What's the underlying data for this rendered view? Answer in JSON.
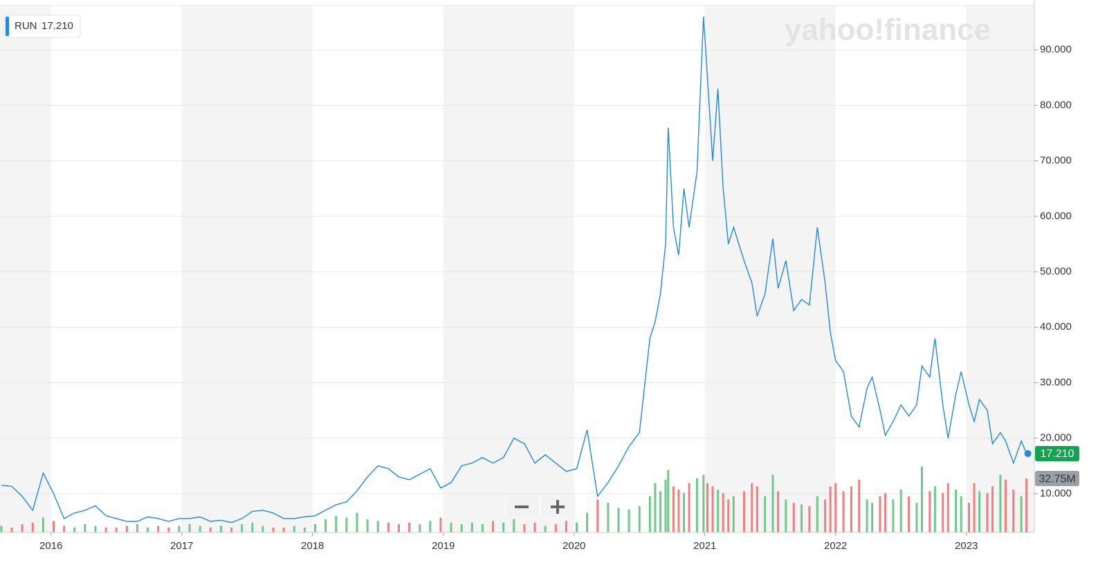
{
  "chart_data": {
    "type": "line",
    "watermark": "yahoo!finance",
    "xlim": [
      2015.61,
      2023.52
    ],
    "xticks": [
      2016,
      2017,
      2018,
      2019,
      2020,
      2021,
      2022,
      2023
    ],
    "ylim": [
      3,
      98
    ],
    "yticks": [
      {
        "value": 10,
        "label": "10.000"
      },
      {
        "value": 20,
        "label": "20.000"
      },
      {
        "value": 30,
        "label": "30.000"
      },
      {
        "value": 40,
        "label": "40.000"
      },
      {
        "value": 50,
        "label": "50.000"
      },
      {
        "value": 60,
        "label": "60.000"
      },
      {
        "value": 70,
        "label": "70.000"
      },
      {
        "value": 80,
        "label": "80.000"
      },
      {
        "value": 90,
        "label": "90.000"
      }
    ],
    "y2lim": [
      0,
      100
    ],
    "grid": true,
    "x": [
      2015.62,
      2015.7,
      2015.78,
      2015.86,
      2015.94,
      2016.02,
      2016.1,
      2016.18,
      2016.26,
      2016.34,
      2016.42,
      2016.5,
      2016.58,
      2016.66,
      2016.74,
      2016.82,
      2016.9,
      2016.98,
      2017.06,
      2017.14,
      2017.22,
      2017.3,
      2017.38,
      2017.46,
      2017.54,
      2017.62,
      2017.7,
      2017.78,
      2017.86,
      2017.94,
      2018.02,
      2018.1,
      2018.18,
      2018.26,
      2018.34,
      2018.42,
      2018.5,
      2018.58,
      2018.66,
      2018.74,
      2018.82,
      2018.9,
      2018.98,
      2019.06,
      2019.14,
      2019.22,
      2019.3,
      2019.38,
      2019.46,
      2019.54,
      2019.62,
      2019.7,
      2019.78,
      2019.86,
      2019.94,
      2020.02,
      2020.1,
      2020.18,
      2020.26,
      2020.34,
      2020.42,
      2020.5,
      2020.58,
      2020.62,
      2020.66,
      2020.7,
      2020.72,
      2020.76,
      2020.8,
      2020.84,
      2020.88,
      2020.94,
      2020.99,
      2021.02,
      2021.06,
      2021.1,
      2021.14,
      2021.18,
      2021.22,
      2021.3,
      2021.36,
      2021.4,
      2021.46,
      2021.52,
      2021.56,
      2021.62,
      2021.68,
      2021.74,
      2021.8,
      2021.86,
      2021.92,
      2021.96,
      2022.0,
      2022.06,
      2022.12,
      2022.18,
      2022.24,
      2022.28,
      2022.34,
      2022.38,
      2022.44,
      2022.5,
      2022.56,
      2022.62,
      2022.66,
      2022.72,
      2022.76,
      2022.82,
      2022.86,
      2022.92,
      2022.96,
      2023.02,
      2023.06,
      2023.1,
      2023.16,
      2023.2,
      2023.26,
      2023.3,
      2023.36,
      2023.42,
      2023.46
    ],
    "series": [
      {
        "name": "RUN",
        "color": "#1e88e5",
        "values": [
          11.5,
          11.3,
          9.5,
          7.0,
          13.7,
          10.0,
          5.5,
          6.5,
          7.0,
          7.8,
          6.0,
          5.5,
          5.0,
          5.0,
          5.8,
          5.5,
          5.0,
          5.5,
          5.5,
          5.8,
          5.0,
          5.2,
          4.8,
          5.5,
          6.8,
          7.0,
          6.5,
          5.5,
          5.5,
          5.8,
          6.0,
          7.0,
          8.0,
          8.5,
          10.5,
          13.0,
          15.0,
          14.5,
          13.0,
          12.5,
          13.5,
          14.5,
          11.0,
          12.0,
          15.0,
          15.5,
          16.5,
          15.5,
          16.5,
          20.0,
          19.0,
          15.5,
          17.0,
          15.5,
          14.0,
          14.5,
          21.5,
          9.5,
          12.0,
          15.0,
          18.5,
          21.0,
          38.0,
          41,
          46,
          55,
          76,
          58,
          53,
          65,
          58,
          68,
          96,
          85,
          70,
          83,
          65,
          55,
          58,
          52,
          48,
          42,
          46,
          56,
          47,
          52,
          43,
          45,
          44,
          58,
          48,
          39,
          34,
          32,
          24,
          22,
          29,
          31,
          25,
          20.5,
          23,
          26,
          24,
          26,
          33,
          31,
          38,
          26,
          20,
          28,
          32,
          26,
          23,
          27,
          25,
          19,
          21,
          19.5,
          15.5,
          19.5,
          17.21
        ],
        "value_labels": [
          null,
          null,
          null,
          null,
          null,
          null,
          null,
          null,
          null,
          null,
          null,
          null,
          null,
          null,
          null,
          null,
          null,
          null,
          null,
          null,
          null,
          null,
          null,
          null,
          null,
          null,
          null,
          null,
          null,
          null,
          null,
          null,
          null,
          null,
          null,
          null,
          null,
          null,
          null,
          null,
          null,
          null,
          null,
          null,
          null,
          null,
          null,
          null,
          null,
          null,
          null,
          null,
          null,
          null,
          null,
          null,
          null,
          null,
          null,
          null,
          null,
          null,
          null,
          null,
          null,
          null,
          null,
          null,
          null,
          null,
          null,
          null,
          null,
          null,
          null,
          null,
          null,
          null,
          null,
          null,
          null,
          null,
          null,
          null,
          null,
          null,
          null,
          null,
          null,
          null,
          null,
          null,
          null,
          null,
          null,
          null,
          null,
          null,
          null,
          null,
          null,
          null,
          null,
          null,
          null,
          null,
          null,
          null,
          null,
          null,
          null,
          null,
          null,
          null,
          null,
          null,
          null,
          null,
          null,
          null,
          "17.210"
        ],
        "label_color": "#0fa54f"
      },
      {
        "type": "bar",
        "axis": "y2",
        "up_color": "#6cc98a",
        "down_color": "#f27d7d",
        "label_color": "#9aa0a8",
        "values": [
          4,
          3,
          5,
          6,
          9,
          7,
          4,
          3,
          5,
          4,
          3,
          3,
          4,
          5,
          3,
          4,
          3,
          4,
          5,
          4,
          3,
          4,
          3,
          5,
          6,
          4,
          3,
          3,
          4,
          3,
          5,
          8,
          10,
          9,
          12,
          8,
          7,
          6,
          5,
          6,
          5,
          7,
          9,
          6,
          5,
          6,
          5,
          7,
          6,
          8,
          5,
          6,
          4,
          5,
          7,
          6,
          12,
          20,
          18,
          15,
          14,
          16,
          22,
          30,
          25,
          32,
          38,
          28,
          26,
          24,
          30,
          33,
          35,
          30,
          28,
          26,
          24,
          20,
          22,
          25,
          30,
          28,
          22,
          35,
          25,
          20,
          18,
          17,
          16,
          22,
          20,
          28,
          30,
          25,
          28,
          32,
          20,
          18,
          22,
          24,
          20,
          26,
          22,
          18,
          40,
          25,
          28,
          24,
          30,
          26,
          22,
          18,
          30,
          25,
          24,
          28,
          35,
          32,
          26,
          22,
          32.75
        ],
        "value_labels": [
          null,
          null,
          null,
          null,
          null,
          null,
          null,
          null,
          null,
          null,
          null,
          null,
          null,
          null,
          null,
          null,
          null,
          null,
          null,
          null,
          null,
          null,
          null,
          null,
          null,
          null,
          null,
          null,
          null,
          null,
          null,
          null,
          null,
          null,
          null,
          null,
          null,
          null,
          null,
          null,
          null,
          null,
          null,
          null,
          null,
          null,
          null,
          null,
          null,
          null,
          null,
          null,
          null,
          null,
          null,
          null,
          null,
          null,
          null,
          null,
          null,
          null,
          null,
          null,
          null,
          null,
          null,
          null,
          null,
          null,
          null,
          null,
          null,
          null,
          null,
          null,
          null,
          null,
          null,
          null,
          null,
          null,
          null,
          null,
          null,
          null,
          null,
          null,
          null,
          null,
          null,
          null,
          null,
          null,
          null,
          null,
          null,
          null,
          null,
          null,
          null,
          null,
          null,
          null,
          null,
          null,
          null,
          null,
          null,
          null,
          null,
          null,
          null,
          null,
          null,
          null,
          null,
          null,
          null,
          null,
          "32.75M"
        ]
      }
    ]
  }
}
